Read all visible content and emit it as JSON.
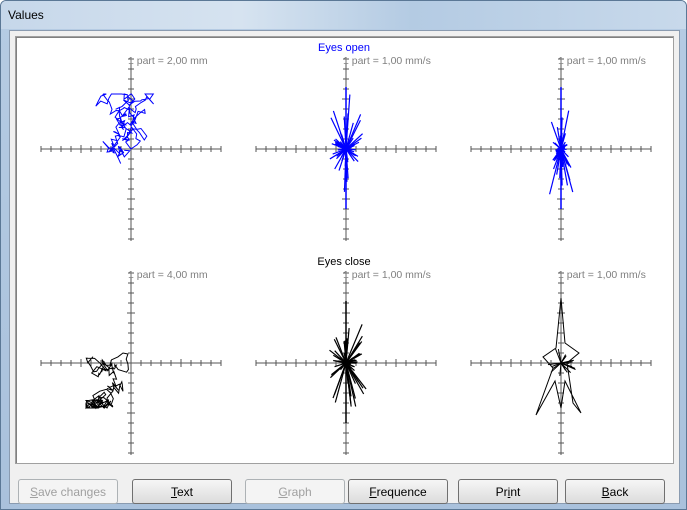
{
  "window": {
    "title": "Values"
  },
  "sections": [
    {
      "label": "Eyes open",
      "color": "#0000ff"
    },
    {
      "label": "Eyes close",
      "color": "#000000"
    }
  ],
  "plots": [
    {
      "scale_label": "1 part = 2,00 mm",
      "color": "#0000ff",
      "icon": "stabilogram-trace"
    },
    {
      "scale_label": "1 part = 1,00 mm/s",
      "color": "#0000ff",
      "icon": "velocity-rose"
    },
    {
      "scale_label": "1 part = 1,00 mm/s",
      "color": "#0000ff",
      "icon": "velocity-rose-narrow"
    },
    {
      "scale_label": "1 part = 4,00 mm",
      "color": "#000000",
      "icon": "stabilogram-trace"
    },
    {
      "scale_label": "1 part = 1,00 mm/s",
      "color": "#000000",
      "icon": "velocity-rose"
    },
    {
      "scale_label": "1 part = 1,00 mm/s",
      "color": "#000000",
      "icon": "velocity-rose-outline"
    }
  ],
  "buttons": {
    "save": {
      "label": "Save changes",
      "enabled": false,
      "mnemonic": "S"
    },
    "text": {
      "label": "Text",
      "enabled": true,
      "mnemonic": "T"
    },
    "graph": {
      "label": "Graph",
      "enabled": false,
      "mnemonic": "G"
    },
    "frequence": {
      "label": "Frequence",
      "enabled": true,
      "mnemonic": "F"
    },
    "print": {
      "label": "Print",
      "enabled": true,
      "mnemonic": "i"
    },
    "back": {
      "label": "Back",
      "enabled": true,
      "mnemonic": "B"
    }
  }
}
